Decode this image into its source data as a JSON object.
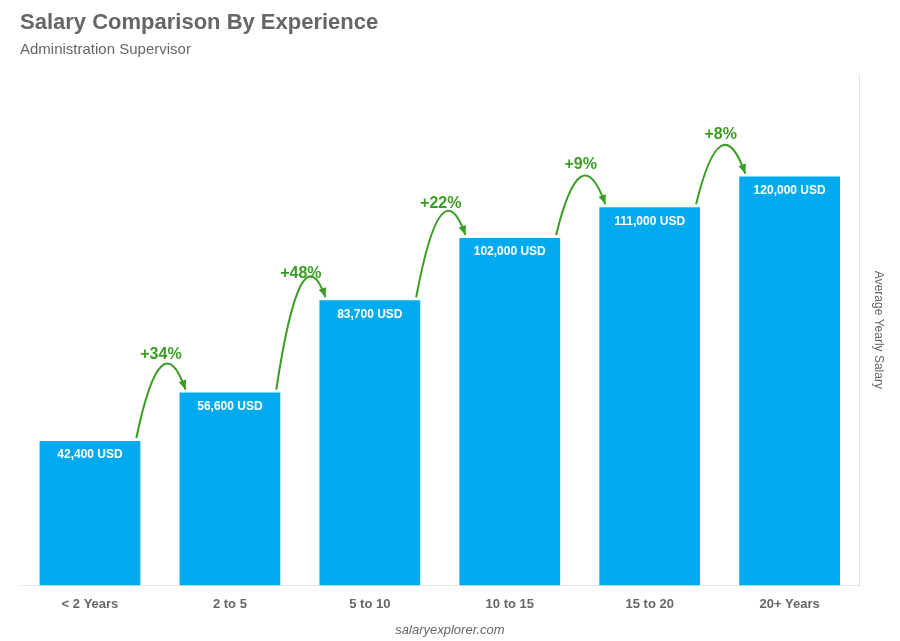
{
  "chart_data": {
    "type": "bar",
    "title": "Salary Comparison By Experience",
    "subtitle": "Administration Supervisor",
    "ylabel": "Average Yearly Salary",
    "categories": [
      "< 2 Years",
      "2 to 5",
      "5 to 10",
      "10 to 15",
      "15 to 20",
      "20+ Years"
    ],
    "values": [
      42400,
      56600,
      83700,
      102000,
      111000,
      120000
    ],
    "value_labels": [
      "42,400 USD",
      "56,600 USD",
      "83,700 USD",
      "102,000 USD",
      "111,000 USD",
      "120,000 USD"
    ],
    "data_labels": true,
    "annotations": [
      "+34%",
      "+48%",
      "+22%",
      "+9%",
      "+8%"
    ],
    "watermark": "salaryexplorer.com",
    "color": "#00aaee",
    "ylim": [
      0,
      150000
    ],
    "tick_labels": "x",
    "grid": false
  }
}
